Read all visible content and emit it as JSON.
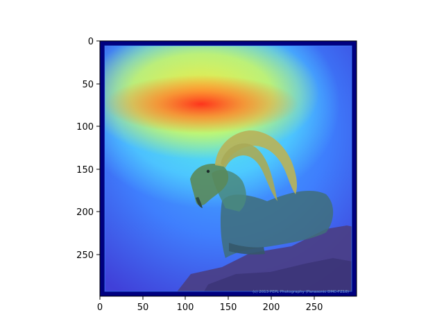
{
  "figure": {
    "photo_credit": "(c) 2013 PEPL Photography (Panasonic DMC-FZ18)",
    "colors": {
      "background": "#ffffff",
      "axes_frame": "#000000",
      "colormap": "jet",
      "image_border": "#00007f"
    }
  },
  "axes": {
    "x_ticks": [
      "0",
      "50",
      "100",
      "150",
      "200",
      "250"
    ],
    "y_ticks": [
      "0",
      "50",
      "100",
      "150",
      "200",
      "250"
    ]
  },
  "image": {
    "subject": "ibex",
    "overlay": "heatmap",
    "icon_name": "ibex-icon"
  }
}
